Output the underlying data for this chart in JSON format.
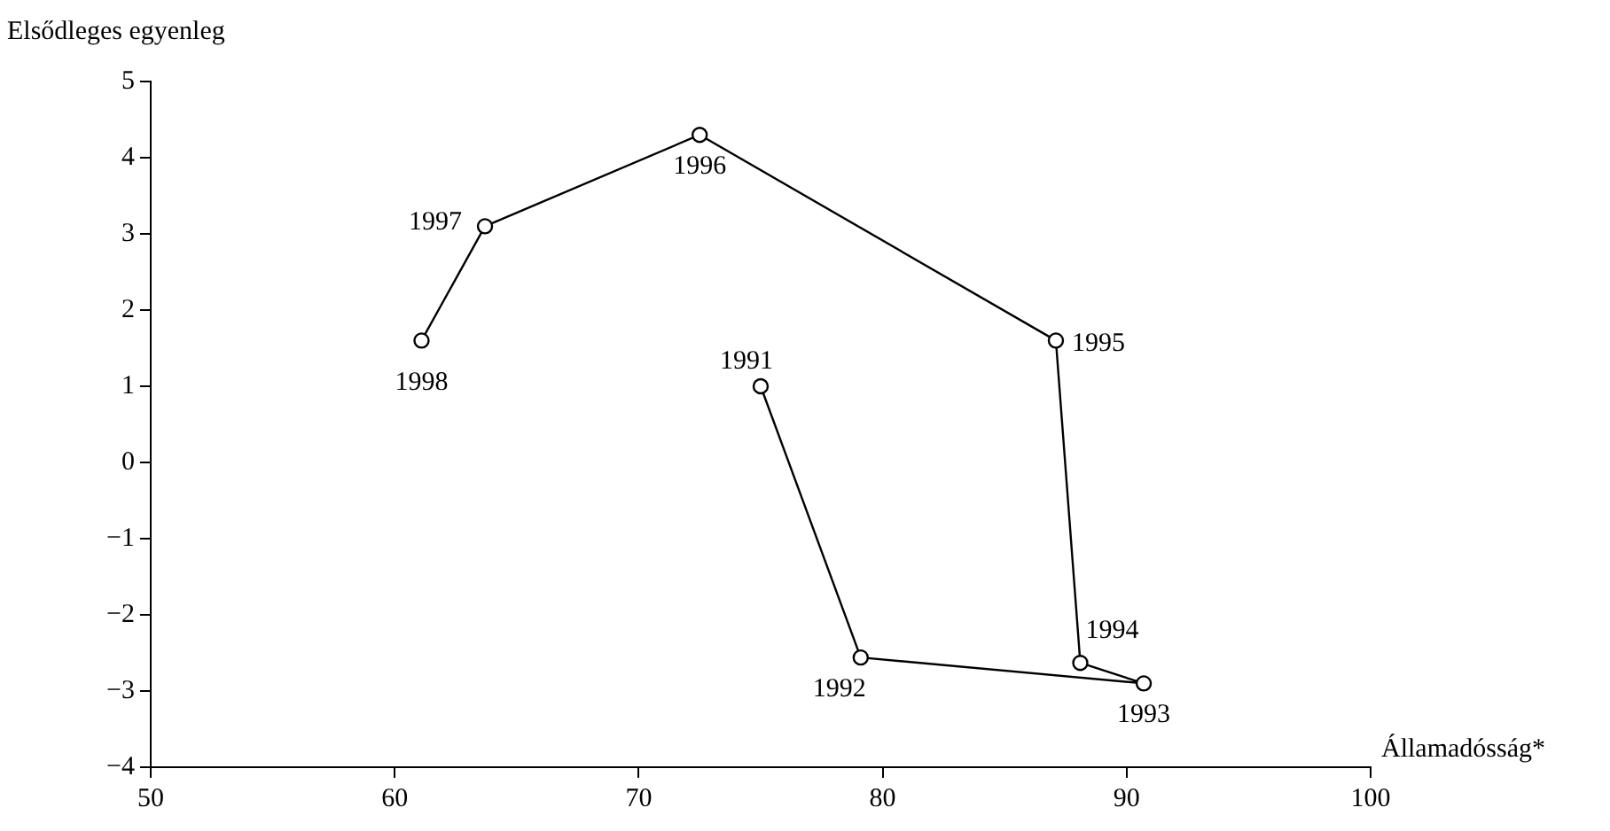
{
  "chart_data": {
    "type": "line",
    "xlabel": "Államadósság*",
    "ylabel": "Elsődleges egyenleg",
    "x": [
      75,
      79.1,
      90.7,
      88.1,
      87.1,
      72.5,
      63.7,
      61.1
    ],
    "series": [
      {
        "color": "#000000",
        "values": [
          1.0,
          -2.56,
          -2.9,
          -2.63,
          1.6,
          4.3,
          3.1,
          1.6
        ]
      }
    ],
    "xlim": [
      50,
      100
    ],
    "xticks": [
      50,
      60,
      70,
      80,
      90,
      100
    ],
    "ylim": [
      -4,
      5
    ],
    "yticks": [
      {
        "value": -4,
        "label": "−4"
      },
      {
        "value": -3,
        "label": "−3"
      },
      {
        "value": -2,
        "label": "−2"
      },
      {
        "value": -1,
        "label": "−1"
      },
      0,
      1,
      2,
      3,
      4,
      5
    ],
    "annotations": [
      {
        "text": "1991",
        "x": 75,
        "y": 1.0
      },
      {
        "text": "1992",
        "x": 79.1,
        "y": -2.56
      },
      {
        "text": "1993",
        "x": 90.7,
        "y": -2.9
      },
      {
        "text": "1994",
        "x": 88.1,
        "y": -2.63
      },
      {
        "text": "1995",
        "x": 87.1,
        "y": 1.6
      },
      {
        "text": "1996",
        "x": 72.5,
        "y": 4.3
      },
      {
        "text": "1997",
        "x": 63.7,
        "y": 3.1
      },
      {
        "text": "1998",
        "x": 61.1,
        "y": 1.6
      }
    ],
    "grid": false,
    "legend": false,
    "marker": "circle",
    "line_style": "solid"
  }
}
